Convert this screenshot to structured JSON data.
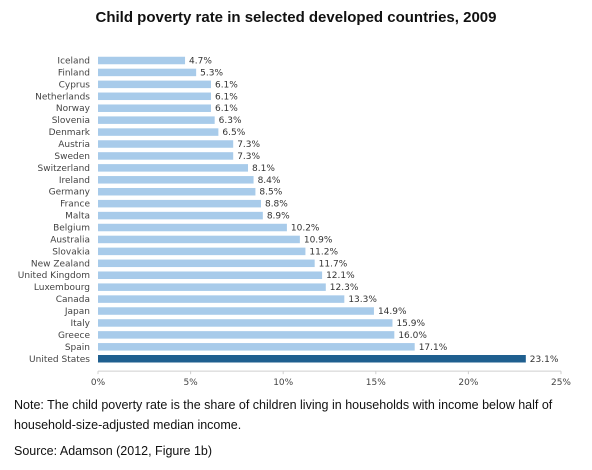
{
  "chart_data": {
    "type": "bar",
    "orientation": "horizontal",
    "title": "Child poverty rate in selected developed countries, 2009",
    "xlabel": "",
    "ylabel": "",
    "categories": [
      "Iceland",
      "Finland",
      "Cyprus",
      "Netherlands",
      "Norway",
      "Slovenia",
      "Denmark",
      "Austria",
      "Sweden",
      "Switzerland",
      "Ireland",
      "Germany",
      "France",
      "Malta",
      "Belgium",
      "Australia",
      "Slovakia",
      "New Zealand",
      "United Kingdom",
      "Luxembourg",
      "Canada",
      "Japan",
      "Italy",
      "Greece",
      "Spain",
      "United States"
    ],
    "values": [
      4.7,
      5.3,
      6.1,
      6.1,
      6.1,
      6.3,
      6.5,
      7.3,
      7.3,
      8.1,
      8.4,
      8.5,
      8.8,
      8.9,
      10.2,
      10.9,
      11.2,
      11.7,
      12.1,
      12.3,
      13.3,
      14.9,
      15.9,
      16.0,
      17.1,
      23.1
    ],
    "value_labels": [
      "4.7%",
      "5.3%",
      "6.1%",
      "6.1%",
      "6.1%",
      "6.3%",
      "6.5%",
      "7.3%",
      "7.3%",
      "8.1%",
      "8.4%",
      "8.5%",
      "8.8%",
      "8.9%",
      "10.2%",
      "10.9%",
      "11.2%",
      "11.7%",
      "12.1%",
      "12.3%",
      "13.3%",
      "14.9%",
      "15.9%",
      "16.0%",
      "17.1%",
      "23.1%"
    ],
    "xlim": [
      0,
      25
    ],
    "x_ticks": [
      0,
      5,
      10,
      15,
      20,
      25
    ],
    "x_tick_labels": [
      "0%",
      "5%",
      "10%",
      "15%",
      "20%",
      "25%"
    ],
    "grid": false,
    "legend": "none",
    "colors": {
      "default_bar": "#a8cbea",
      "highlight_bar": "#1f5f8f"
    },
    "highlight_category": "United States"
  },
  "note": "Note: The child poverty rate is the share of children living in households with income below half of household-size-adjusted median income.",
  "source": "Source: Adamson (2012, Figure 1b)"
}
